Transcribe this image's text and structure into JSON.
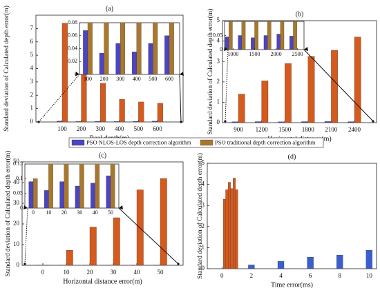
{
  "chart_data": [
    {
      "type": "bar",
      "title": "(a)",
      "xlabel": "Real depth(m)",
      "ylabel": "Standard deviation of Calculated depth error(m)",
      "categories": [
        "100",
        "200",
        "300",
        "400",
        "500",
        "600"
      ],
      "series": [
        {
          "name": "PSO NLOS-LOS depth correction algorithm",
          "color": "#4b45c4",
          "values": [
            0.068,
            0.033,
            0.048,
            0.035,
            0.048,
            0.06
          ]
        },
        {
          "name": "PSO traditional depth correction algorithm",
          "color": "#d45a1e",
          "values": [
            7.4,
            3.7,
            2.9,
            1.7,
            1.5,
            1.4
          ]
        }
      ],
      "ylim": [
        0,
        8
      ],
      "yticks": [
        0,
        1,
        2,
        3,
        4,
        5,
        6,
        7
      ],
      "inset": {
        "ylim": [
          0,
          0.08
        ],
        "yticks": [
          0,
          0.02,
          0.04,
          0.06,
          0.08
        ]
      }
    },
    {
      "type": "bar",
      "title": "(b)",
      "xlabel": "Horizontal distance(m)",
      "ylabel": "Standard deviation of Calculated depth error(m)",
      "categories": [
        "900",
        "1200",
        "1500",
        "1800",
        "2100",
        "2400"
      ],
      "series": [
        {
          "color": "#4b45c4",
          "values": [
            0.045,
            0.05,
            0.042,
            0.05,
            0.055,
            0.048
          ]
        },
        {
          "color": "#d45a1e",
          "values": [
            1.4,
            2.05,
            2.9,
            3.25,
            3.55,
            4.2
          ]
        }
      ],
      "ylim": [
        0,
        5
      ],
      "yticks": [
        0,
        1,
        2,
        3,
        4,
        5
      ],
      "inset": {
        "ylim": [
          0,
          0.1
        ],
        "yticks": [
          0,
          0.05
        ],
        "xlim": [
          800,
          2650
        ],
        "xticks": [
          1000,
          1500,
          2000,
          2500
        ]
      }
    },
    {
      "type": "bar",
      "title": "(c)",
      "xlabel": "Horizontal distance error(m)",
      "ylabel": "Standard deviation of Calculated depth error(m)",
      "categories": [
        "0",
        "10",
        "20",
        "30",
        "40",
        "50"
      ],
      "series": [
        {
          "color": "#4b45c4",
          "values": [
            0.09,
            0.06,
            0.09,
            0.075,
            0.085,
            0.11
          ]
        },
        {
          "color": "#d45a1e",
          "values": [
            0.1,
            7.3,
            18.5,
            23,
            36.5,
            42
          ]
        }
      ],
      "ylim": [
        0,
        50
      ],
      "yticks": [
        0,
        10,
        20,
        30,
        40,
        50
      ],
      "inset": {
        "ylim": [
          0,
          0.15
        ],
        "yticks": [
          0,
          0.05,
          0.1,
          0.15
        ]
      }
    },
    {
      "type": "histbar",
      "title": "(d)",
      "xlabel": "Time error(ms)",
      "ylabel": "Standard deviation of Calculated depth error(m)",
      "series": [
        {
          "color": "#d45a1e",
          "x": [
            0.17,
            0.33,
            0.5,
            0.67,
            0.83,
            1.0
          ],
          "values": [
            3.3,
            3.75,
            4.1,
            3.8,
            4.3,
            3.75
          ]
        },
        {
          "color": "#3a5fcd",
          "x": [
            2,
            4,
            6,
            8,
            10
          ],
          "values": [
            0.18,
            0.35,
            0.55,
            0.65,
            0.88
          ]
        }
      ],
      "xlim": [
        -1,
        10.5
      ],
      "xticks": [
        0,
        2,
        4,
        6,
        8,
        10
      ],
      "ylim": [
        0,
        5
      ],
      "yticks": [
        0,
        1,
        2,
        3,
        4,
        5
      ]
    }
  ]
}
